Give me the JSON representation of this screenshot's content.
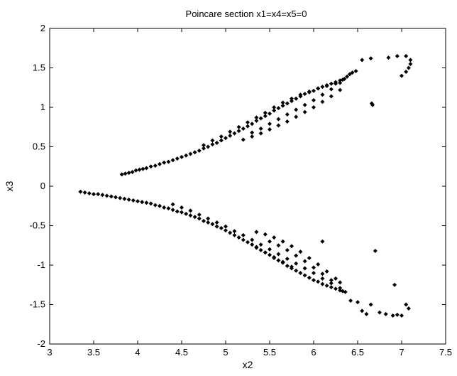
{
  "chart_data": {
    "type": "scatter",
    "title": "Poincare section x1=x4=x5=0",
    "xlabel": "x2",
    "ylabel": "x3",
    "xlim": [
      3,
      7.5
    ],
    "ylim": [
      -2,
      2
    ],
    "xticks": [
      "3",
      "3.5",
      "4",
      "4.5",
      "5",
      "5.5",
      "6",
      "6.5",
      "7",
      "7.5"
    ],
    "yticks": [
      "2",
      "1.5",
      "1",
      "0.5",
      "0",
      "-0.5",
      "-1",
      "-1.5",
      "-2"
    ],
    "grid": false,
    "legend": "none",
    "marker": "diamond",
    "color": "#000000",
    "series": [
      {
        "x": [
          3.82,
          3.86,
          3.9,
          3.94,
          3.98,
          4.02,
          4.06,
          4.1,
          4.15,
          4.2,
          4.25,
          4.3,
          4.35,
          4.4,
          4.45,
          4.5,
          4.55,
          4.6,
          4.65,
          4.7,
          4.75,
          4.8,
          4.85,
          4.9,
          4.95,
          5.0,
          5.05,
          5.1,
          5.15,
          5.2,
          5.25,
          5.3,
          5.35,
          5.4,
          5.45,
          5.5,
          5.55,
          5.6,
          5.65,
          5.7,
          5.75,
          5.8,
          5.85,
          5.9,
          5.95,
          6.0,
          6.05,
          6.1,
          6.15,
          6.2,
          6.25,
          6.3,
          6.33
        ],
        "y": [
          0.15,
          0.16,
          0.17,
          0.18,
          0.2,
          0.21,
          0.22,
          0.23,
          0.25,
          0.26,
          0.28,
          0.3,
          0.31,
          0.33,
          0.35,
          0.37,
          0.39,
          0.41,
          0.43,
          0.45,
          0.48,
          0.5,
          0.53,
          0.55,
          0.58,
          0.61,
          0.64,
          0.67,
          0.7,
          0.73,
          0.76,
          0.79,
          0.83,
          0.86,
          0.89,
          0.92,
          0.96,
          0.99,
          1.02,
          1.05,
          1.08,
          1.11,
          1.14,
          1.17,
          1.19,
          1.21,
          1.24,
          1.26,
          1.28,
          1.3,
          1.32,
          1.34,
          1.35
        ]
      },
      {
        "x": [
          4.75,
          4.85,
          4.95,
          5.05,
          5.15,
          5.25,
          5.35,
          5.45,
          5.55,
          5.65,
          5.75,
          5.85,
          5.95,
          6.05,
          6.15,
          6.25,
          6.3
        ],
        "y": [
          0.52,
          0.58,
          0.63,
          0.69,
          0.75,
          0.81,
          0.87,
          0.93,
          1.0,
          1.06,
          1.11,
          1.16,
          1.2,
          1.24,
          1.27,
          1.3,
          1.31
        ]
      },
      {
        "x": [
          5.2,
          5.3,
          5.4,
          5.5,
          5.6,
          5.7,
          5.8,
          5.9,
          6.0,
          6.1,
          6.2,
          6.3
        ],
        "y": [
          0.59,
          0.63,
          0.67,
          0.72,
          0.77,
          0.82,
          0.88,
          0.94,
          1.0,
          1.07,
          1.14,
          1.22
        ]
      },
      {
        "x": [
          5.3,
          5.4,
          5.5,
          5.6,
          5.7,
          5.8,
          5.9,
          6.0,
          6.1,
          6.2
        ],
        "y": [
          0.68,
          0.73,
          0.79,
          0.85,
          0.91,
          0.97,
          1.03,
          1.09,
          1.16,
          1.23
        ]
      },
      {
        "x": [
          6.35,
          6.38,
          6.41,
          6.44,
          6.48
        ],
        "y": [
          1.36,
          1.39,
          1.42,
          1.44,
          1.46
        ]
      },
      {
        "x": [
          6.55,
          6.65,
          6.85,
          6.95,
          7.05,
          7.1,
          7.1,
          7.08,
          7.05,
          7.0,
          6.66,
          6.67
        ],
        "y": [
          1.6,
          1.62,
          1.63,
          1.65,
          1.65,
          1.6,
          1.55,
          1.5,
          1.45,
          1.4,
          1.05,
          1.03
        ]
      },
      {
        "x": [
          3.35,
          3.4,
          3.45,
          3.5,
          3.55,
          3.6,
          3.65,
          3.7,
          3.75,
          3.8,
          3.85,
          3.9,
          3.95,
          4.0,
          4.05,
          4.1,
          4.15,
          4.2,
          4.25,
          4.3,
          4.35,
          4.4,
          4.45,
          4.5,
          4.55,
          4.6,
          4.65,
          4.7,
          4.75,
          4.8,
          4.85,
          4.9,
          4.95,
          5.0,
          5.05,
          5.1,
          5.15,
          5.2,
          5.25,
          5.3,
          5.35,
          5.4,
          5.45,
          5.5,
          5.55,
          5.6,
          5.65,
          5.7,
          5.75,
          5.8,
          5.85,
          5.9,
          5.95,
          6.0,
          6.05,
          6.1,
          6.15,
          6.2,
          6.25,
          6.3,
          6.33,
          6.36
        ],
        "y": [
          -0.07,
          -0.08,
          -0.09,
          -0.1,
          -0.1,
          -0.11,
          -0.12,
          -0.13,
          -0.14,
          -0.15,
          -0.16,
          -0.17,
          -0.18,
          -0.19,
          -0.2,
          -0.21,
          -0.22,
          -0.24,
          -0.25,
          -0.27,
          -0.28,
          -0.3,
          -0.32,
          -0.33,
          -0.35,
          -0.37,
          -0.39,
          -0.41,
          -0.44,
          -0.46,
          -0.48,
          -0.51,
          -0.53,
          -0.56,
          -0.59,
          -0.62,
          -0.65,
          -0.68,
          -0.71,
          -0.74,
          -0.77,
          -0.81,
          -0.84,
          -0.87,
          -0.91,
          -0.94,
          -0.97,
          -1.01,
          -1.04,
          -1.07,
          -1.1,
          -1.13,
          -1.16,
          -1.19,
          -1.21,
          -1.24,
          -1.26,
          -1.28,
          -1.3,
          -1.32,
          -1.33,
          -1.34
        ]
      },
      {
        "x": [
          4.4,
          4.5,
          4.6,
          4.7,
          4.8,
          4.9,
          5.0,
          5.1,
          5.2,
          5.3,
          5.4,
          5.5,
          5.6,
          5.7,
          5.8,
          5.9,
          6.0,
          6.1,
          6.2,
          6.3
        ],
        "y": [
          -0.23,
          -0.27,
          -0.31,
          -0.36,
          -0.41,
          -0.46,
          -0.51,
          -0.57,
          -0.62,
          -0.68,
          -0.74,
          -0.8,
          -0.86,
          -0.92,
          -0.98,
          -1.04,
          -1.1,
          -1.17,
          -1.23,
          -1.29
        ]
      },
      {
        "x": [
          5.35,
          5.45,
          5.55,
          5.65,
          5.75,
          5.85,
          5.95,
          6.05,
          6.15,
          6.25,
          6.3
        ],
        "y": [
          -0.58,
          -0.61,
          -0.65,
          -0.7,
          -0.76,
          -0.83,
          -0.91,
          -0.99,
          -1.08,
          -1.17,
          -1.22
        ]
      },
      {
        "x": [
          5.5,
          5.6,
          5.7,
          5.8,
          5.9,
          6.0,
          6.1,
          6.2
        ],
        "y": [
          -0.7,
          -0.75,
          -0.81,
          -0.88,
          -0.95,
          -1.03,
          -1.11,
          -1.19
        ]
      },
      {
        "x": [
          5.35,
          5.45,
          5.55,
          5.65,
          5.75
        ],
        "y": [
          -0.78,
          -0.84,
          -0.9,
          -0.96,
          -1.02
        ]
      },
      {
        "x": [
          6.1,
          6.42,
          6.5,
          6.55,
          6.6,
          6.65,
          6.75,
          6.82,
          6.9,
          6.95,
          7.0,
          7.05,
          7.08,
          6.92,
          6.7
        ],
        "y": [
          -0.7,
          -1.45,
          -1.47,
          -1.58,
          -1.62,
          -1.5,
          -1.6,
          -1.62,
          -1.64,
          -1.63,
          -1.64,
          -1.5,
          -1.55,
          -1.25,
          -0.82
        ]
      }
    ]
  }
}
